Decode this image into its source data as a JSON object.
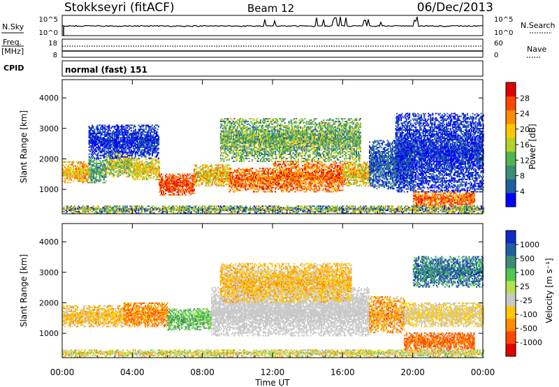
{
  "header": {
    "station": "Stokkseyri (fitACF)",
    "beam": "Beam 12",
    "date": "06/Dec/2013"
  },
  "sky_panel": {
    "left_label": "N.Sky",
    "left_ticks": [
      "10^5",
      "10^0"
    ],
    "right_ticks": [
      "10^5",
      "10^0"
    ],
    "right_label": "N.Search"
  },
  "freq_panel": {
    "left_label_1": "Freq.",
    "left_label_2": "[MHz]",
    "left_ticks": [
      "18",
      "8"
    ],
    "right_ticks": [
      "60",
      "0"
    ],
    "right_label": "Nave"
  },
  "cpid_panel": {
    "label": "CPID",
    "mode": "normal (fast) 151"
  },
  "chart_data": [
    {
      "type": "heatmap",
      "name": "power",
      "ylabel": "Slant Range [km]",
      "y_ticks": [
        "4000",
        "3000",
        "2000",
        "1000"
      ],
      "y_tick_values": [
        4000,
        3000,
        2000,
        1000
      ],
      "ylim": [
        200,
        4600
      ],
      "xlim_hours": [
        0,
        24
      ],
      "colorbar_label": "Power [dB]",
      "colorbar_ticks": [
        "28",
        "24",
        "20",
        "16",
        "12",
        "8",
        "4"
      ],
      "colors": [
        "#0000ff",
        "#2060a0",
        "#3c8c78",
        "#50b450",
        "#b4d228",
        "#ffc800",
        "#ff8c00",
        "#ff4600",
        "#e10000"
      ],
      "blobs": [
        {
          "t": [
            0.0,
            1.5
          ],
          "r": [
            1200,
            1900
          ],
          "cat": [
            4,
            7
          ]
        },
        {
          "t": [
            1.5,
            2.5
          ],
          "r": [
            1200,
            2000
          ],
          "cat": [
            1,
            4
          ]
        },
        {
          "t": [
            2.5,
            4.0
          ],
          "r": [
            1400,
            2200
          ],
          "cat": [
            2,
            6
          ]
        },
        {
          "t": [
            4.0,
            5.5
          ],
          "r": [
            1300,
            2000
          ],
          "cat": [
            3,
            6
          ]
        },
        {
          "t": [
            5.5,
            7.5
          ],
          "r": [
            800,
            1500
          ],
          "cat": [
            6,
            8
          ]
        },
        {
          "t": [
            7.5,
            9.5
          ],
          "r": [
            1100,
            1800
          ],
          "cat": [
            3,
            7
          ]
        },
        {
          "t": [
            9.5,
            12.0
          ],
          "r": [
            900,
            1700
          ],
          "cat": [
            5,
            8
          ]
        },
        {
          "t": [
            12.0,
            16.0
          ],
          "r": [
            900,
            1900
          ],
          "cat": [
            5,
            8
          ]
        },
        {
          "t": [
            16.0,
            17.5
          ],
          "r": [
            1100,
            1900
          ],
          "cat": [
            3,
            7
          ]
        },
        {
          "t": [
            9.0,
            17.0
          ],
          "r": [
            1900,
            3300
          ],
          "cat": [
            1,
            5
          ]
        },
        {
          "t": [
            1.5,
            5.5
          ],
          "r": [
            2000,
            3100
          ],
          "cat": [
            0,
            1
          ]
        },
        {
          "t": [
            17.5,
            20.0
          ],
          "r": [
            1000,
            2600
          ],
          "cat": [
            0,
            2
          ]
        },
        {
          "t": [
            20.0,
            23.5
          ],
          "r": [
            400,
            900
          ],
          "cat": [
            5,
            8
          ]
        },
        {
          "t": [
            19.0,
            24.0
          ],
          "r": [
            900,
            3500
          ],
          "cat": [
            0,
            1
          ]
        },
        {
          "t": [
            0.0,
            24.0
          ],
          "r": [
            200,
            450
          ],
          "cat": [
            0,
            6
          ]
        }
      ]
    },
    {
      "type": "heatmap",
      "name": "velocity",
      "ylabel": "Slant Range [km]",
      "y_ticks": [
        "4000",
        "3000",
        "2000",
        "1000"
      ],
      "y_tick_values": [
        4000,
        3000,
        2000,
        1000
      ],
      "ylim": [
        200,
        4600
      ],
      "xlim_hours": [
        0,
        24
      ],
      "colorbar_label": "Velocity [m s⁻¹]",
      "colorbar_ticks": [
        "1000",
        "500",
        "100",
        "25",
        "-25",
        "-100",
        "-500",
        "-1000"
      ],
      "colors": [
        "#e10000",
        "#ff4600",
        "#ff8c00",
        "#ffc800",
        "#c8c8c8",
        "#b4e150",
        "#50c850",
        "#3c8c78",
        "#2060a0",
        "#1428c8"
      ],
      "blobs": [
        {
          "t": [
            0.0,
            3.5
          ],
          "r": [
            1200,
            1900
          ],
          "cat": [
            2,
            4
          ]
        },
        {
          "t": [
            3.5,
            6.0
          ],
          "r": [
            1200,
            2000
          ],
          "cat": [
            1,
            3
          ]
        },
        {
          "t": [
            6.0,
            8.5
          ],
          "r": [
            1100,
            1800
          ],
          "cat": [
            5,
            7
          ]
        },
        {
          "t": [
            8.5,
            17.5
          ],
          "r": [
            900,
            2500
          ],
          "cat": [
            4,
            4
          ]
        },
        {
          "t": [
            9.0,
            16.5
          ],
          "r": [
            2000,
            3300
          ],
          "cat": [
            2,
            4
          ]
        },
        {
          "t": [
            17.5,
            19.5
          ],
          "r": [
            1000,
            2200
          ],
          "cat": [
            1,
            4
          ]
        },
        {
          "t": [
            19.5,
            23.5
          ],
          "r": [
            400,
            1000
          ],
          "cat": [
            1,
            2
          ]
        },
        {
          "t": [
            19.5,
            24.0
          ],
          "r": [
            1200,
            2000
          ],
          "cat": [
            3,
            4
          ]
        },
        {
          "t": [
            20.0,
            24.0
          ],
          "r": [
            2500,
            3500
          ],
          "cat": [
            6,
            9
          ]
        },
        {
          "t": [
            0.0,
            24.0
          ],
          "r": [
            200,
            450
          ],
          "cat": [
            2,
            6
          ]
        }
      ]
    }
  ],
  "x_axis": {
    "ticks": [
      "00:00",
      "04:00",
      "08:00",
      "12:00",
      "16:00",
      "20:00",
      "00:00"
    ],
    "label": "Time UT"
  }
}
